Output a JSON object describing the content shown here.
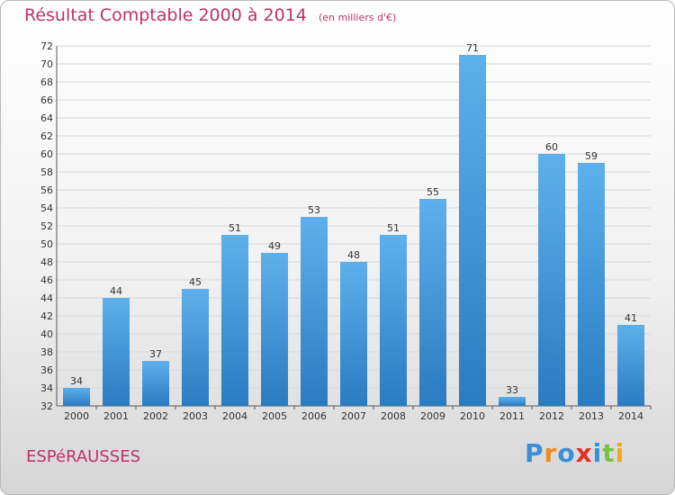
{
  "title": "Résultat Comptable 2000 à 2014",
  "subtitle": "(en milliers d'€)",
  "commune": "ESPéRAUSSES",
  "logo": {
    "text": "Proxiti",
    "letters": [
      "P",
      "r",
      "o",
      "x",
      "i",
      "t",
      "i"
    ],
    "colors": [
      "#3a8fd8",
      "#f08a1c",
      "#3a8fd8",
      "#e0302a",
      "#3a8fd8",
      "#7cc242",
      "#f0a81c"
    ]
  },
  "colors": {
    "title": "#c0306a",
    "bar_top": "#5eb0ec",
    "bar_bottom": "#2a7bc0",
    "grid": "#d8d8d8"
  },
  "chart_data": {
    "type": "bar",
    "title": "Résultat Comptable 2000 à 2014",
    "xlabel": "",
    "ylabel": "",
    "categories": [
      "2000",
      "2001",
      "2002",
      "2003",
      "2004",
      "2005",
      "2006",
      "2007",
      "2008",
      "2009",
      "2010",
      "2011",
      "2012",
      "2013",
      "2014"
    ],
    "values": [
      34,
      44,
      37,
      45,
      51,
      49,
      53,
      48,
      51,
      55,
      71,
      33,
      60,
      59,
      41
    ],
    "ylim": [
      32,
      72
    ],
    "yticks": [
      32,
      34,
      36,
      38,
      40,
      42,
      44,
      46,
      48,
      50,
      52,
      54,
      56,
      58,
      60,
      62,
      64,
      66,
      68,
      70,
      72
    ],
    "grid": true,
    "legend": "none"
  }
}
